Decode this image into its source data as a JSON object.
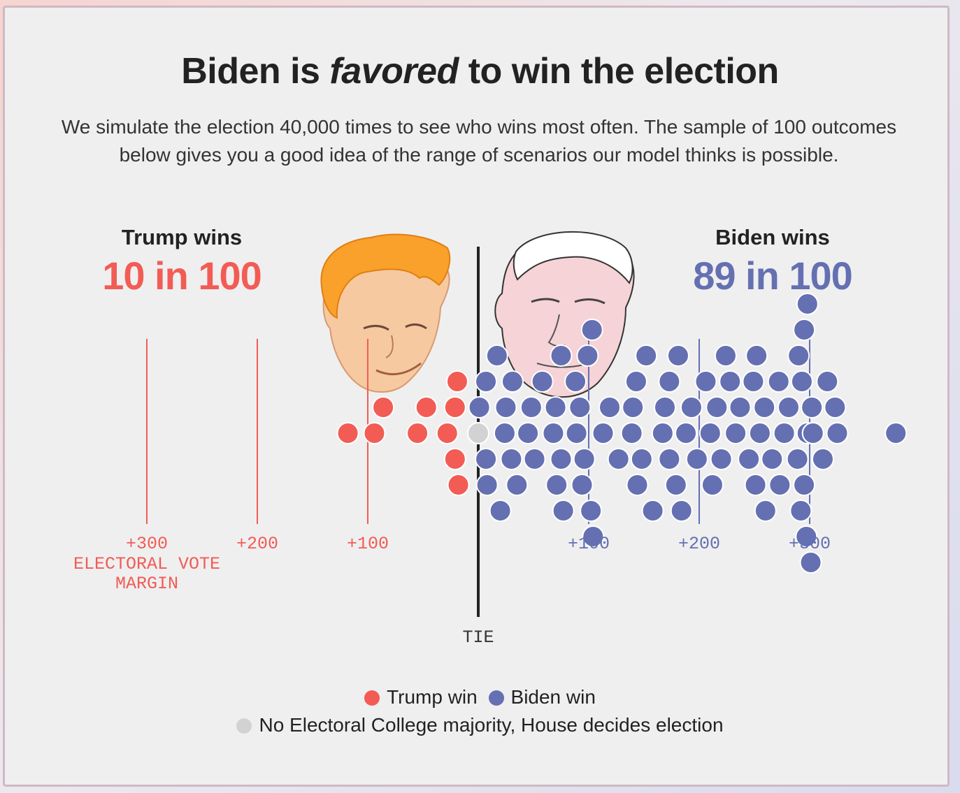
{
  "title": {
    "pre": "Biden is",
    "em": "favored",
    "post": "to win the election"
  },
  "subtitle": "We simulate the election 40,000 times to see who wins most often. The sample of 100 outcomes below gives you a good idea of the range of scenarios our model thinks is possible.",
  "trump_header": {
    "label": "Trump wins",
    "count": "10 in 100"
  },
  "biden_header": {
    "label": "Biden wins",
    "count": "89 in 100"
  },
  "axis": {
    "caption": "ELECTORAL VOTE\nMARGIN",
    "tie_label": "TIE",
    "ticks_left": [
      "+300",
      "+200",
      "+100"
    ],
    "ticks_right": [
      "+100",
      "+200",
      "+300"
    ]
  },
  "legend": {
    "trump": "Trump win",
    "biden": "Biden win",
    "house": "No Electoral College majority, House decides election"
  },
  "colors": {
    "trump": "#f25c54",
    "biden": "#6470b1",
    "tie": "#d2d2d2",
    "axis_line": "#222222"
  },
  "chart_data": {
    "type": "scatter",
    "x_unit": "electoral vote margin (negative = Trump, positive = Biden)",
    "xlim": [
      -330,
      390
    ],
    "tick_values": [
      -300,
      -200,
      -100,
      100,
      200,
      300
    ],
    "series": [
      {
        "name": "Trump win",
        "values": [
          -118,
          -94,
          -86,
          -55,
          -47,
          -28,
          -21,
          -21,
          -19,
          -18
        ]
      },
      {
        "name": "No Electoral College majority, House decides election",
        "values": [
          0
        ]
      },
      {
        "name": "Biden win",
        "values": [
          1,
          7,
          7,
          8,
          17,
          20,
          24,
          25,
          30,
          31,
          35,
          45,
          48,
          51,
          58,
          68,
          70,
          71,
          75,
          75,
          77,
          88,
          89,
          92,
          94,
          96,
          99,
          102,
          103,
          104,
          113,
          119,
          127,
          139,
          140,
          143,
          144,
          148,
          152,
          158,
          167,
          169,
          173,
          173,
          179,
          181,
          184,
          188,
          193,
          198,
          206,
          210,
          212,
          216,
          220,
          224,
          228,
          233,
          237,
          245,
          249,
          251,
          252,
          255,
          259,
          260,
          266,
          272,
          273,
          277,
          281,
          289,
          290,
          292,
          293,
          295,
          295,
          297,
          298,
          298,
          301,
          302,
          303,
          303,
          312,
          316,
          323,
          325,
          378
        ]
      }
    ]
  }
}
